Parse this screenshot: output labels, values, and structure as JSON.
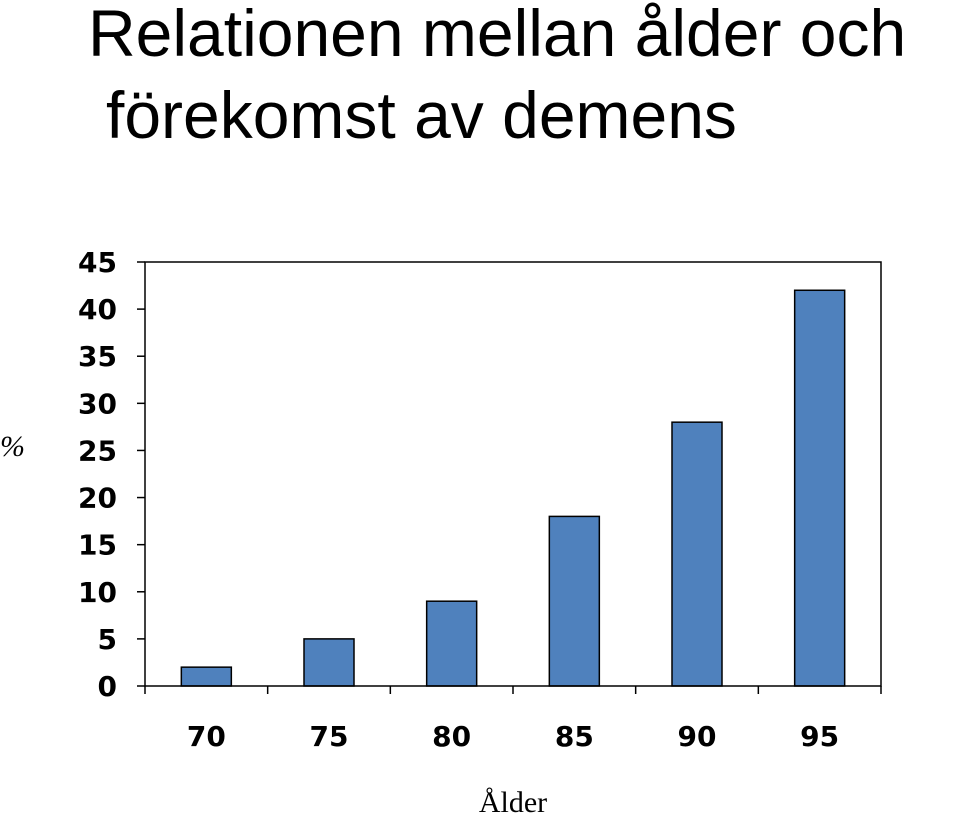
{
  "chart_data": {
    "type": "bar",
    "title_lines": [
      "Relationen mellan ålder och",
      "förekomst av demens"
    ],
    "categories": [
      "70",
      "75",
      "80",
      "85",
      "90",
      "95"
    ],
    "values": [
      2,
      5,
      9,
      18,
      28,
      42
    ],
    "xlabel": "Ålder",
    "ylabel": "%",
    "ylim": [
      0,
      45
    ],
    "yticks": [
      0,
      5,
      10,
      15,
      20,
      25,
      30,
      35,
      40,
      45
    ],
    "grid": false,
    "legend": "none",
    "bar_color": "#4f81bd"
  }
}
